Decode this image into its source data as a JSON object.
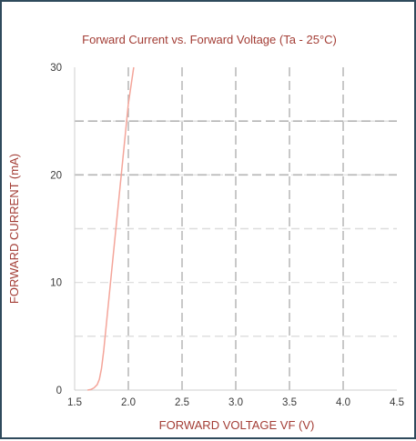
{
  "chart_data": {
    "type": "line",
    "title": "Forward Current vs. Forward Voltage (Ta - 25°C)",
    "xlabel": "FORWARD VOLTAGE VF (V)",
    "ylabel": "FORWARD CURRENT (mA)",
    "xlim": [
      1.5,
      4.5
    ],
    "ylim": [
      0,
      30
    ],
    "x_ticks": [
      "1.5",
      "2.0",
      "2.5",
      "3.0",
      "3.5",
      "4.0",
      "4.5"
    ],
    "y_ticks": [
      "0",
      "10",
      "20",
      "30"
    ],
    "grid": true,
    "legend": "none",
    "colors": {
      "curve": "#f4a59a",
      "text": "#a33d35",
      "grid_major": "#b5b5b5",
      "grid_minor": "#dcdcdc",
      "axis": "#cfcfcf",
      "frame": "#2f4a5c"
    },
    "series": [
      {
        "x": [
          1.62,
          1.65,
          1.68,
          1.71,
          1.73,
          1.75,
          1.77,
          1.8,
          1.85,
          1.9,
          1.95,
          2.0,
          2.05
        ],
        "y": [
          0,
          0.05,
          0.2,
          0.5,
          1.0,
          2.0,
          3.6,
          6.6,
          11.6,
          16.6,
          21.6,
          26.6,
          30
        ]
      }
    ]
  }
}
